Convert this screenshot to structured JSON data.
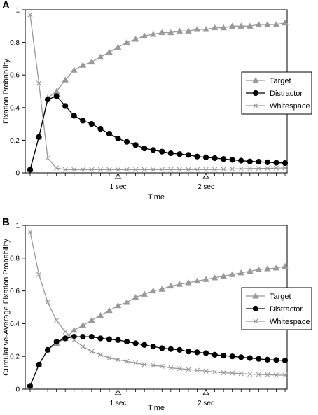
{
  "colors": {
    "target": "#999999",
    "distractor": "#000000",
    "whitespace": "#999999",
    "axis": "#000000",
    "background": "#ffffff"
  },
  "chart_data": [
    {
      "panel_label": "A",
      "type": "line",
      "xlabel": "Time",
      "ylabel": "Fixation Probability",
      "ylim": [
        0,
        1
      ],
      "yticks": [
        "0",
        "0.2",
        "0.4",
        "0.6",
        "0.8",
        "1"
      ],
      "ytick_values": [
        0,
        0.2,
        0.4,
        0.6,
        0.8,
        1
      ],
      "x_markers": [
        {
          "label": "1 sec",
          "x": 10
        },
        {
          "label": "2 sec",
          "x": 20
        }
      ],
      "xlim": [
        0,
        29
      ],
      "grid": false,
      "legend_position": "center-right",
      "x": [
        0,
        1,
        2,
        3,
        4,
        5,
        6,
        7,
        8,
        9,
        10,
        11,
        12,
        13,
        14,
        15,
        16,
        17,
        18,
        19,
        20,
        21,
        22,
        23,
        24,
        25,
        26,
        27,
        28,
        29
      ],
      "series": [
        {
          "name": "Target",
          "marker": "triangle",
          "color_key": "target",
          "values": [
            0.02,
            0.22,
            0.46,
            0.5,
            0.57,
            0.63,
            0.66,
            0.68,
            0.71,
            0.74,
            0.77,
            0.8,
            0.82,
            0.84,
            0.85,
            0.86,
            0.86,
            0.87,
            0.87,
            0.88,
            0.88,
            0.89,
            0.89,
            0.9,
            0.9,
            0.9,
            0.91,
            0.91,
            0.91,
            0.92
          ]
        },
        {
          "name": "Distractor",
          "marker": "circle",
          "color_key": "distractor",
          "values": [
            0.02,
            0.22,
            0.45,
            0.47,
            0.41,
            0.35,
            0.32,
            0.3,
            0.27,
            0.24,
            0.21,
            0.19,
            0.17,
            0.15,
            0.14,
            0.13,
            0.12,
            0.115,
            0.11,
            0.1,
            0.095,
            0.09,
            0.085,
            0.08,
            0.075,
            0.07,
            0.068,
            0.065,
            0.062,
            0.06
          ]
        },
        {
          "name": "Whitespace",
          "marker": "x",
          "color_key": "whitespace",
          "values": [
            0.97,
            0.55,
            0.09,
            0.03,
            0.02,
            0.02,
            0.02,
            0.02,
            0.02,
            0.02,
            0.02,
            0.02,
            0.02,
            0.02,
            0.02,
            0.02,
            0.02,
            0.02,
            0.02,
            0.02,
            0.02,
            0.02,
            0.022,
            0.024,
            0.025,
            0.026,
            0.027,
            0.028,
            0.029,
            0.03
          ]
        }
      ]
    },
    {
      "panel_label": "B",
      "type": "line",
      "xlabel": "Time",
      "ylabel": "Cumulative-Average Fixation Probability",
      "ylim": [
        0,
        1
      ],
      "yticks": [
        "0",
        "0.2",
        "0.4",
        "0.6",
        "0.8",
        "1"
      ],
      "ytick_values": [
        0,
        0.2,
        0.4,
        0.6,
        0.8,
        1
      ],
      "x_markers": [
        {
          "label": "1 sec",
          "x": 10
        },
        {
          "label": "2 sec",
          "x": 20
        }
      ],
      "xlim": [
        0,
        29
      ],
      "grid": false,
      "legend_position": "center-right",
      "x": [
        0,
        1,
        2,
        3,
        4,
        5,
        6,
        7,
        8,
        9,
        10,
        11,
        12,
        13,
        14,
        15,
        16,
        17,
        18,
        19,
        20,
        21,
        22,
        23,
        24,
        25,
        26,
        27,
        28,
        29
      ],
      "series": [
        {
          "name": "Target",
          "marker": "triangle",
          "color_key": "target",
          "values": [
            0.02,
            0.15,
            0.24,
            0.28,
            0.31,
            0.36,
            0.39,
            0.42,
            0.45,
            0.48,
            0.51,
            0.53,
            0.56,
            0.58,
            0.6,
            0.61,
            0.63,
            0.64,
            0.65,
            0.66,
            0.67,
            0.68,
            0.69,
            0.7,
            0.71,
            0.72,
            0.73,
            0.735,
            0.74,
            0.75
          ]
        },
        {
          "name": "Distractor",
          "marker": "circle",
          "color_key": "distractor",
          "values": [
            0.02,
            0.15,
            0.24,
            0.29,
            0.31,
            0.32,
            0.32,
            0.32,
            0.31,
            0.305,
            0.3,
            0.29,
            0.28,
            0.27,
            0.26,
            0.25,
            0.245,
            0.24,
            0.23,
            0.225,
            0.22,
            0.21,
            0.205,
            0.2,
            0.195,
            0.19,
            0.185,
            0.18,
            0.178,
            0.175
          ]
        },
        {
          "name": "Whitespace",
          "marker": "x",
          "color_key": "whitespace",
          "values": [
            0.96,
            0.7,
            0.53,
            0.42,
            0.35,
            0.3,
            0.26,
            0.23,
            0.21,
            0.19,
            0.18,
            0.17,
            0.16,
            0.15,
            0.145,
            0.14,
            0.13,
            0.125,
            0.12,
            0.115,
            0.11,
            0.105,
            0.1,
            0.098,
            0.095,
            0.092,
            0.09,
            0.088,
            0.086,
            0.085
          ]
        }
      ]
    }
  ]
}
